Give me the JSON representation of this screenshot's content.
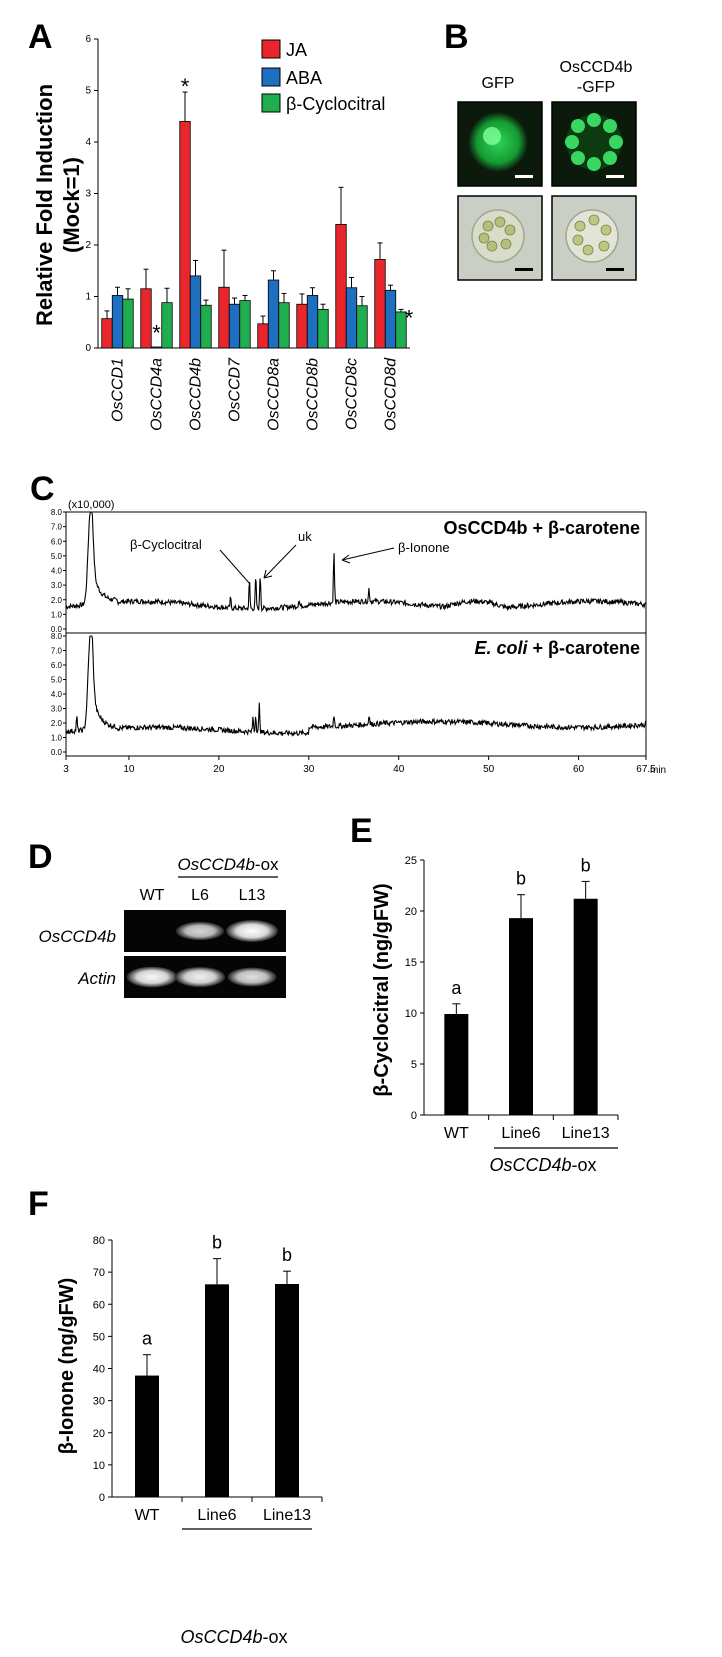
{
  "panels": {
    "a": "A",
    "b": "B",
    "c": "C",
    "d": "D",
    "e": "E",
    "f": "F"
  },
  "chart_data": [
    {
      "panel": "A",
      "type": "bar",
      "ylabel_line1": "Relative Fold Induction",
      "ylabel_line2": "(Mock=1)",
      "ylim": [
        0,
        6
      ],
      "yticks": [
        "0",
        "1",
        "2",
        "3",
        "4",
        "5",
        "6"
      ],
      "categories": [
        "OsCCD1",
        "OsCCD4a",
        "OsCCD4b",
        "OsCCD7",
        "OsCCD8a",
        "OsCCD8b",
        "OsCCD8c",
        "OsCCD8d"
      ],
      "series": [
        {
          "name": "JA",
          "color": "#e8262b",
          "values": [
            0.57,
            1.15,
            4.4,
            1.18,
            0.47,
            0.85,
            2.4,
            1.72
          ],
          "errors": [
            0.15,
            0.38,
            0.57,
            0.72,
            0.15,
            0.2,
            0.72,
            0.32
          ]
        },
        {
          "name": "ABA",
          "color": "#1f6fc0",
          "values": [
            1.02,
            0.02,
            1.4,
            0.85,
            1.32,
            1.02,
            1.17,
            1.12
          ],
          "errors": [
            0.16,
            0,
            0.3,
            0.12,
            0.18,
            0.15,
            0.2,
            0.1
          ]
        },
        {
          "name": "β-Cyclocitral",
          "color": "#1fae4e",
          "values": [
            0.95,
            0.88,
            0.83,
            0.92,
            0.88,
            0.75,
            0.82,
            0.7
          ],
          "errors": [
            0.2,
            0.28,
            0.1,
            0.1,
            0.18,
            0.1,
            0.18,
            0.05
          ]
        }
      ],
      "stars": [
        {
          "category": "OsCCD4a",
          "series": "ABA"
        },
        {
          "category": "OsCCD4b",
          "series": "JA"
        },
        {
          "category": "OsCCD8d",
          "series": "β-Cyclocitral"
        }
      ],
      "star_text": "*"
    },
    {
      "panel": "C",
      "type": "line",
      "scale_label": "(x10,000)",
      "xlim": [
        3,
        67.5
      ],
      "xticks": [
        "3",
        "10",
        "20",
        "30",
        "40",
        "50",
        "60",
        "67.5"
      ],
      "xunit": "min",
      "yticks": [
        "0.0",
        "1.0",
        "2.0",
        "3.0",
        "4.0",
        "5.0",
        "6.0",
        "7.0",
        "8.0"
      ],
      "top_title": "OsCCD4b + β-carotene",
      "bottom_title_italic": "E. coli",
      "bottom_title_rest": " + β-carotene",
      "annotations": [
        "β-Cyclocitral",
        "uk",
        "β-Ionone"
      ],
      "peaks_top": [
        {
          "x": 5.7,
          "y": 8.0
        },
        {
          "x": 23.4,
          "y": 3.3
        },
        {
          "x": 24.1,
          "y": 3.6
        },
        {
          "x": 24.6,
          "y": 3.8
        },
        {
          "x": 32.8,
          "y": 5.3
        },
        {
          "x": 36.7,
          "y": 2.8
        },
        {
          "x": 21.3,
          "y": 2.1
        },
        {
          "x": 28.9,
          "y": 2.0
        }
      ],
      "peaks_bottom": [
        {
          "x": 4.2,
          "y": 2.4
        },
        {
          "x": 5.7,
          "y": 8.0
        },
        {
          "x": 23.8,
          "y": 2.4
        },
        {
          "x": 24.1,
          "y": 2.6
        },
        {
          "x": 24.5,
          "y": 3.3
        },
        {
          "x": 32.8,
          "y": 2.6
        },
        {
          "x": 36.7,
          "y": 2.6
        }
      ]
    },
    {
      "panel": "E",
      "type": "bar",
      "ylabel": "β-Cyclocitral (ng/gFW)",
      "ylim": [
        0,
        25
      ],
      "yticks": [
        "0",
        "5",
        "10",
        "15",
        "20",
        "25"
      ],
      "categories": [
        "WT",
        "Line6",
        "Line13"
      ],
      "values": [
        9.9,
        19.3,
        21.2
      ],
      "errors": [
        1.0,
        2.3,
        1.7
      ],
      "letters": [
        "a",
        "b",
        "b"
      ],
      "group_label_italic": "OsCCD4b",
      "group_label_rest": "-ox"
    },
    {
      "panel": "F",
      "type": "bar",
      "ylabel": "β-Ionone (ng/gFW)",
      "ylim": [
        0,
        80
      ],
      "yticks": [
        "0",
        "10",
        "20",
        "30",
        "40",
        "50",
        "60",
        "70",
        "80"
      ],
      "categories": [
        "WT",
        "Line6",
        "Line13"
      ],
      "values": [
        37.8,
        66.2,
        66.3
      ],
      "errors": [
        6.5,
        8,
        4
      ],
      "letters": [
        "a",
        "b",
        "b"
      ],
      "group_label_italic": "OsCCD4b",
      "group_label_rest": "-ox"
    }
  ],
  "panel_b": {
    "col1": "GFP",
    "col2_line1": "OsCCD4b",
    "col2_line2": "-GFP"
  },
  "panel_d": {
    "group_label_italic": "OsCCD4b",
    "group_label_rest": "-ox",
    "lanes": [
      "WT",
      "L6",
      "L13"
    ],
    "rows": [
      {
        "label": "OsCCD4b",
        "bands": [
          0,
          0.7,
          1.0
        ]
      },
      {
        "label": "Actin",
        "bands": [
          0.9,
          0.85,
          0.75
        ]
      }
    ]
  },
  "colors": {
    "bar": "#000000",
    "gfp_bg": "#0b1a0b",
    "bf_bg": "#c9cfc4"
  }
}
